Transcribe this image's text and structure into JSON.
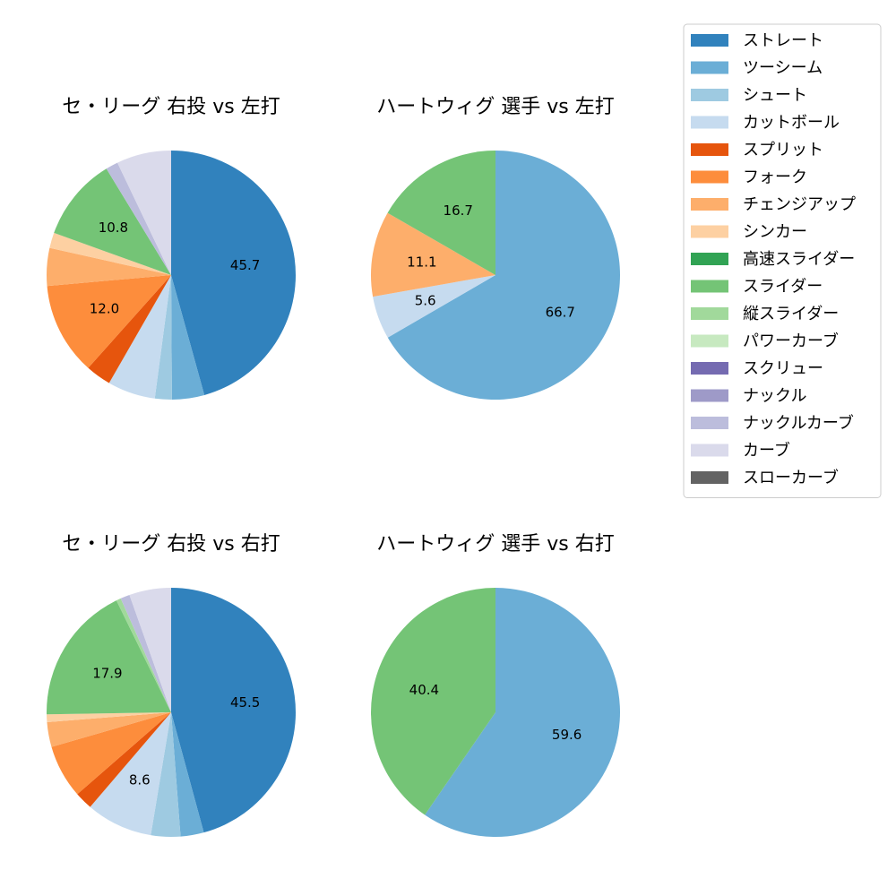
{
  "legend": {
    "entries": [
      {
        "label": "ストレート",
        "color": "#3182bd"
      },
      {
        "label": "ツーシーム",
        "color": "#6baed6"
      },
      {
        "label": "シュート",
        "color": "#9ecae1"
      },
      {
        "label": "カットボール",
        "color": "#c6dbef"
      },
      {
        "label": "スプリット",
        "color": "#e6550d"
      },
      {
        "label": "フォーク",
        "color": "#fd8d3c"
      },
      {
        "label": "チェンジアップ",
        "color": "#fdae6b"
      },
      {
        "label": "シンカー",
        "color": "#fdd0a2"
      },
      {
        "label": "高速スライダー",
        "color": "#31a354"
      },
      {
        "label": "スライダー",
        "color": "#74c476"
      },
      {
        "label": "縦スライダー",
        "color": "#a1d99b"
      },
      {
        "label": "パワーカーブ",
        "color": "#c7e9c0"
      },
      {
        "label": "スクリュー",
        "color": "#756bb1"
      },
      {
        "label": "ナックル",
        "color": "#9e9ac8"
      },
      {
        "label": "ナックルカーブ",
        "color": "#bcbddc"
      },
      {
        "label": "カーブ",
        "color": "#dadaeb"
      },
      {
        "label": "スローカーブ",
        "color": "#636363"
      }
    ]
  },
  "chart_data": [
    {
      "type": "pie",
      "title": "セ・リーグ 右投 vs 左打",
      "slices": [
        {
          "label": "ストレート",
          "value": 45.7,
          "color": "#3182bd",
          "show_label": true
        },
        {
          "label": "ツーシーム",
          "value": 4.2,
          "color": "#6baed6",
          "show_label": false
        },
        {
          "label": "シュート",
          "value": 2.2,
          "color": "#9ecae1",
          "show_label": false
        },
        {
          "label": "カットボール",
          "value": 6.2,
          "color": "#c6dbef",
          "show_label": false
        },
        {
          "label": "スプリット",
          "value": 3.3,
          "color": "#e6550d",
          "show_label": false
        },
        {
          "label": "フォーク",
          "value": 12.0,
          "color": "#fd8d3c",
          "show_label": true
        },
        {
          "label": "チェンジアップ",
          "value": 4.9,
          "color": "#fdae6b",
          "show_label": false
        },
        {
          "label": "シンカー",
          "value": 2.0,
          "color": "#fdd0a2",
          "show_label": false
        },
        {
          "label": "スライダー",
          "value": 10.8,
          "color": "#74c476",
          "show_label": true
        },
        {
          "label": "ナックルカーブ",
          "value": 1.6,
          "color": "#bcbddc",
          "show_label": false
        },
        {
          "label": "カーブ",
          "value": 7.1,
          "color": "#dadaeb",
          "show_label": false
        }
      ]
    },
    {
      "type": "pie",
      "title": "ハートウィグ 選手 vs 左打",
      "slices": [
        {
          "label": "ツーシーム",
          "value": 66.7,
          "color": "#6baed6",
          "show_label": true
        },
        {
          "label": "カットボール",
          "value": 5.6,
          "color": "#c6dbef",
          "show_label": true
        },
        {
          "label": "チェンジアップ",
          "value": 11.1,
          "color": "#fdae6b",
          "show_label": true
        },
        {
          "label": "スライダー",
          "value": 16.7,
          "color": "#74c476",
          "show_label": true
        }
      ]
    },
    {
      "type": "pie",
      "title": "セ・リーグ 右投 vs 右打",
      "slices": [
        {
          "label": "ストレート",
          "value": 45.5,
          "color": "#3182bd",
          "show_label": true
        },
        {
          "label": "ツーシーム",
          "value": 3.0,
          "color": "#6baed6",
          "show_label": false
        },
        {
          "label": "シュート",
          "value": 3.8,
          "color": "#9ecae1",
          "show_label": false
        },
        {
          "label": "カットボール",
          "value": 8.6,
          "color": "#c6dbef",
          "show_label": true
        },
        {
          "label": "スプリット",
          "value": 2.3,
          "color": "#e6550d",
          "show_label": false
        },
        {
          "label": "フォーク",
          "value": 6.9,
          "color": "#fd8d3c",
          "show_label": false
        },
        {
          "label": "チェンジアップ",
          "value": 3.2,
          "color": "#fdae6b",
          "show_label": false
        },
        {
          "label": "シンカー",
          "value": 1.0,
          "color": "#fdd0a2",
          "show_label": false
        },
        {
          "label": "スライダー",
          "value": 17.9,
          "color": "#74c476",
          "show_label": true
        },
        {
          "label": "縦スライダー",
          "value": 0.6,
          "color": "#a1d99b",
          "show_label": false
        },
        {
          "label": "ナックルカーブ",
          "value": 1.2,
          "color": "#bcbddc",
          "show_label": false
        },
        {
          "label": "カーブ",
          "value": 5.4,
          "color": "#dadaeb",
          "show_label": false
        }
      ]
    },
    {
      "type": "pie",
      "title": "ハートウィグ 選手 vs 右打",
      "slices": [
        {
          "label": "ツーシーム",
          "value": 59.6,
          "color": "#6baed6",
          "show_label": true
        },
        {
          "label": "スライダー",
          "value": 40.4,
          "color": "#74c476",
          "show_label": true
        }
      ]
    }
  ]
}
